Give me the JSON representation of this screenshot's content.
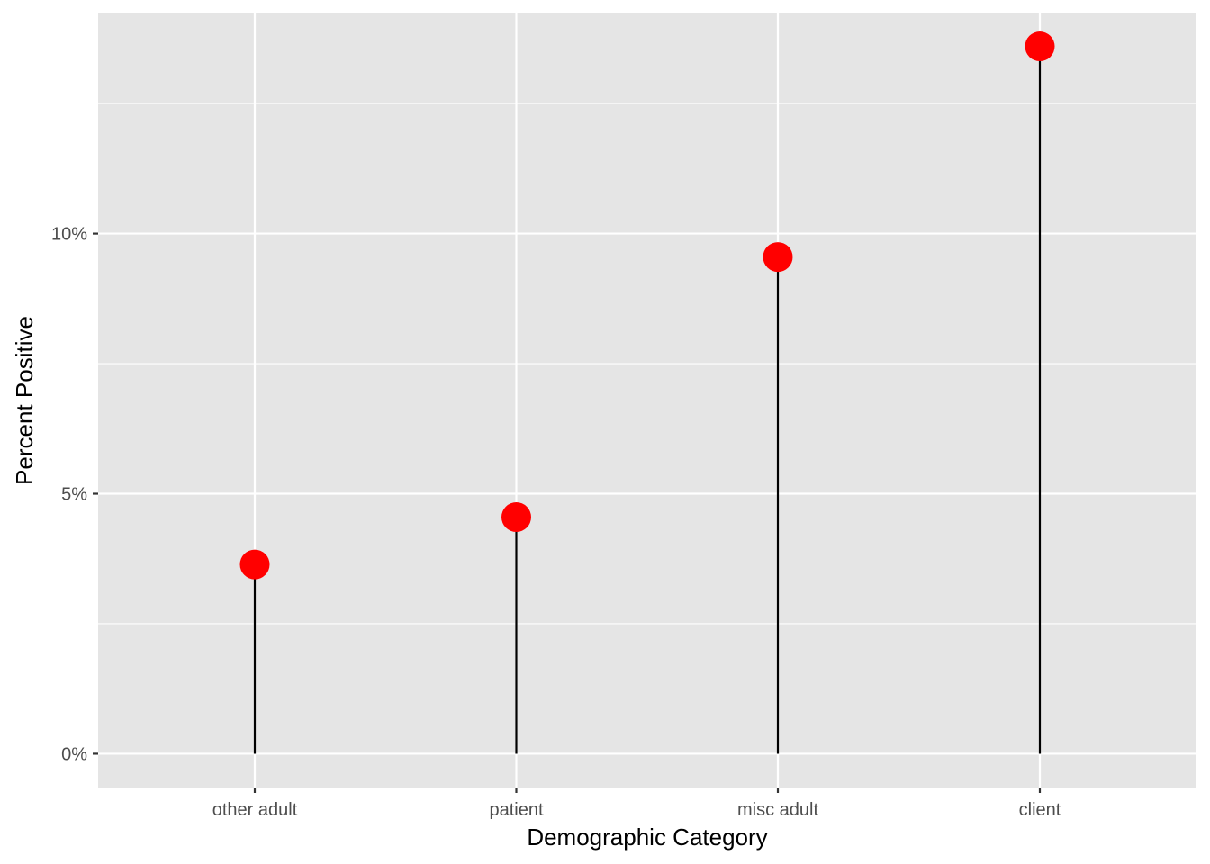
{
  "chart_data": {
    "type": "lollipop",
    "title": "",
    "xlabel": "Demographic Category",
    "ylabel": "Percent Positive",
    "categories": [
      "other adult",
      "patient",
      "misc adult",
      "client"
    ],
    "values": [
      3.64,
      4.55,
      9.55,
      13.6
    ],
    "ylim": [
      -0.65,
      14.25
    ],
    "yticks": [
      {
        "value": 0,
        "label": "0%"
      },
      {
        "value": 5,
        "label": "5%"
      },
      {
        "value": 10,
        "label": "10%"
      }
    ],
    "y_minor_ticks": [
      2.5,
      7.5,
      12.5
    ],
    "grid": true,
    "legend": "none",
    "colors": {
      "panel": "#e5e5e5",
      "grid": "#ffffff",
      "stem": "#000000",
      "point": "#ff0000"
    }
  }
}
